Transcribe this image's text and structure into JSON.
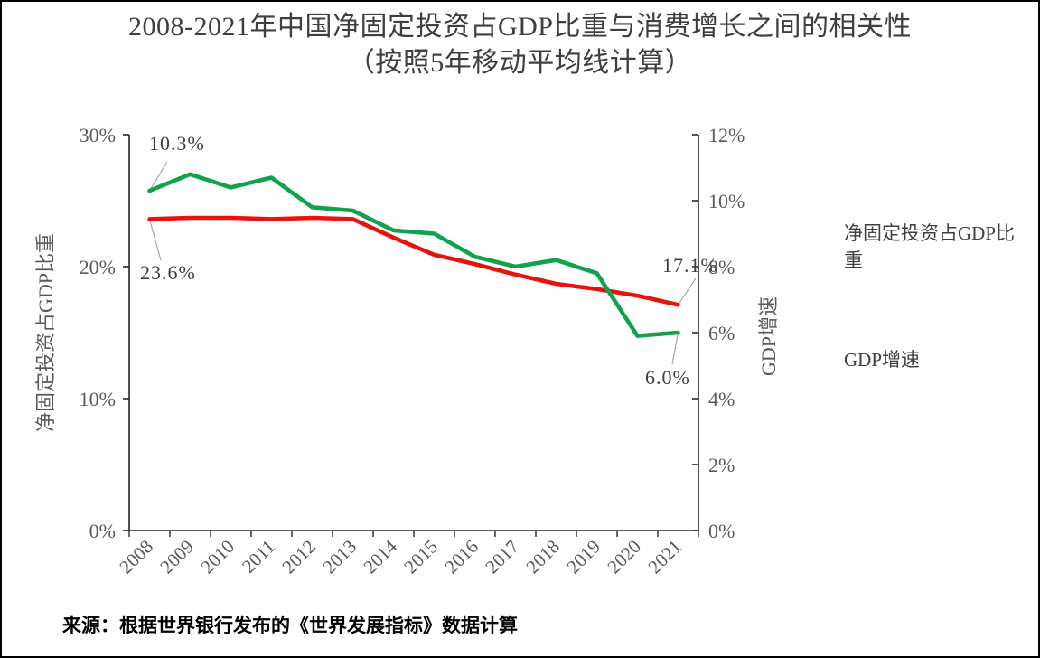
{
  "title": {
    "line1": "2008-2021年中国净固定投资占GDP比重与消费增长之间的相关性",
    "line2": "（按照5年移动平均线计算）"
  },
  "source_note": "来源：根据世界银行发布的《世界发展指标》数据计算",
  "colors": {
    "investment_line": "#e8130c",
    "gdp_line": "#12a24b",
    "axis_text": "#595959",
    "axis_line": "#262626",
    "leader_line": "#a6a6a6",
    "title_text": "#3f3f3f"
  },
  "legend": {
    "items": [
      {
        "label": "净固定投资占GDP比重",
        "color": "#e8130c"
      },
      {
        "label": "GDP增速",
        "color": "#12a24b"
      }
    ]
  },
  "left_axis": {
    "title": "净固定投资占GDP比重",
    "min": 0,
    "max": 30,
    "tick_step": 10,
    "tick_labels": [
      "0%",
      "10%",
      "20%",
      "30%"
    ]
  },
  "right_axis": {
    "title": "GDP增速",
    "min": 0,
    "max": 12,
    "tick_step": 2,
    "tick_labels": [
      "0%",
      "2%",
      "4%",
      "6%",
      "8%",
      "10%",
      "12%"
    ]
  },
  "annotations": [
    {
      "text": "10.3%",
      "series_index": 1,
      "x_index": 0
    },
    {
      "text": "23.6%",
      "series_index": 0,
      "x_index": 0
    },
    {
      "text": "17.1%",
      "series_index": 0,
      "x_index": 13
    },
    {
      "text": "6.0%",
      "series_index": 1,
      "x_index": 13
    }
  ],
  "chart_data": {
    "type": "line",
    "title": "2008-2021年中国净固定投资占GDP比重与消费增长之间的相关性（按照5年移动平均线计算）",
    "x": [
      "2008",
      "2009",
      "2010",
      "2011",
      "2012",
      "2013",
      "2014",
      "2015",
      "2016",
      "2017",
      "2018",
      "2019",
      "2020",
      "2021"
    ],
    "series": [
      {
        "name": "净固定投资占GDP比重",
        "axis": "left",
        "color": "#e8130c",
        "values": [
          23.6,
          23.7,
          23.7,
          23.6,
          23.7,
          23.6,
          22.2,
          20.9,
          20.2,
          19.4,
          18.7,
          18.3,
          17.8,
          17.1
        ]
      },
      {
        "name": "GDP增速",
        "axis": "right",
        "color": "#12a24b",
        "values": [
          10.3,
          10.8,
          10.4,
          10.7,
          9.8,
          9.7,
          9.1,
          9.0,
          8.3,
          8.0,
          8.2,
          7.8,
          5.9,
          6.0
        ]
      }
    ],
    "left_ylim": [
      0,
      30
    ],
    "right_ylim": [
      0,
      12
    ],
    "xlabel": "",
    "ylabel_left": "净固定投资占GDP比重",
    "ylabel_right": "GDP增速",
    "grid": false,
    "legend_position": "right"
  }
}
